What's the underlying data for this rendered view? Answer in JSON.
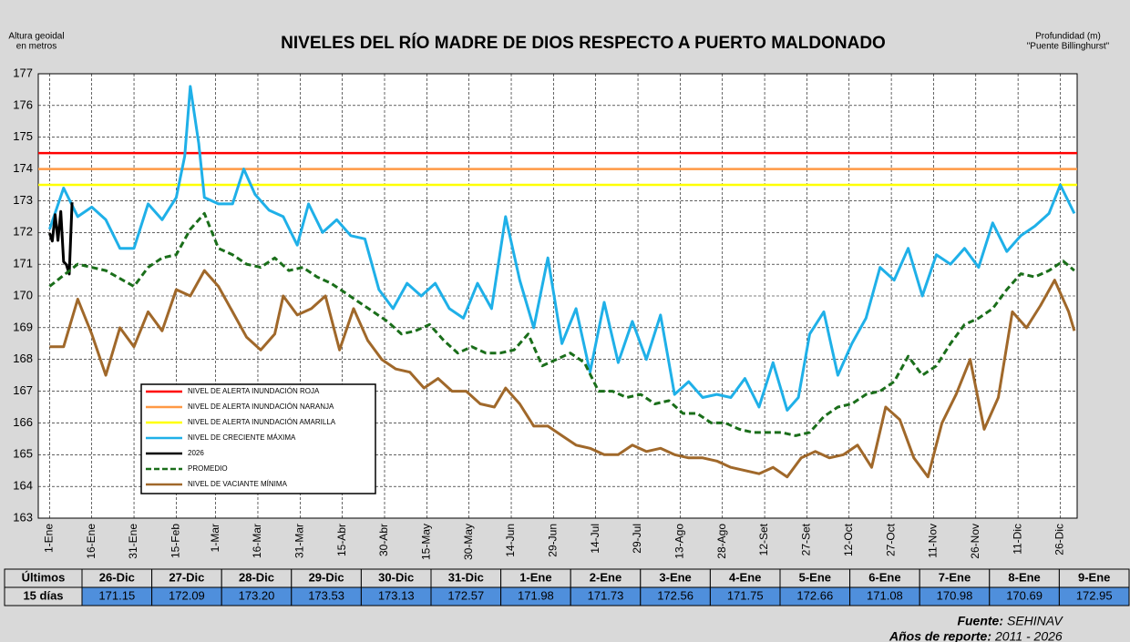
{
  "chart_data": {
    "type": "line",
    "title": "NIVELES DEL RÍO MADRE DE DIOS RESPECTO A PUERTO MALDONADO",
    "y_label": [
      "Altura geoidal",
      "en metros"
    ],
    "y2_label": [
      "Profundidad (m)",
      "\"Puente Billinghurst\""
    ],
    "xlim": [
      -4,
      365
    ],
    "ylim": [
      163,
      177
    ],
    "yticks": [
      163,
      164,
      165,
      166,
      167,
      168,
      169,
      170,
      171,
      172,
      173,
      174,
      175,
      176,
      177
    ],
    "xticks": [
      {
        "value": 0,
        "label": "1-Ene"
      },
      {
        "value": 15,
        "label": "16-Ene"
      },
      {
        "value": 30,
        "label": "31-Ene"
      },
      {
        "value": 45,
        "label": "15-Feb"
      },
      {
        "value": 59,
        "label": "1-Mar"
      },
      {
        "value": 74,
        "label": "16-Mar"
      },
      {
        "value": 89,
        "label": "31-Mar"
      },
      {
        "value": 104,
        "label": "15-Abr"
      },
      {
        "value": 119,
        "label": "30-Abr"
      },
      {
        "value": 134,
        "label": "15-May"
      },
      {
        "value": 149,
        "label": "30-May"
      },
      {
        "value": 164,
        "label": "14-Jun"
      },
      {
        "value": 179,
        "label": "29-Jun"
      },
      {
        "value": 194,
        "label": "14-Jul"
      },
      {
        "value": 209,
        "label": "29-Jul"
      },
      {
        "value": 224,
        "label": "13-Ago"
      },
      {
        "value": 239,
        "label": "28-Ago"
      },
      {
        "value": 254,
        "label": "12-Set"
      },
      {
        "value": 269,
        "label": "27-Set"
      },
      {
        "value": 284,
        "label": "12-Oct"
      },
      {
        "value": 299,
        "label": "27-Oct"
      },
      {
        "value": 314,
        "label": "11-Nov"
      },
      {
        "value": 329,
        "label": "26-Nov"
      },
      {
        "value": 344,
        "label": "11-Dic"
      },
      {
        "value": 359,
        "label": "26-Dic"
      }
    ],
    "grid": true,
    "thresholds": [
      {
        "name": "NIVEL DE ALERTA INUNDACIÓN ROJA",
        "color": "#ff0000",
        "value": 174.5
      },
      {
        "name": "NIVEL DE ALERTA INUNDACIÓN NARANJA",
        "color": "#ff9944",
        "value": 174
      },
      {
        "name": "NIVEL DE ALERTA INUNDACIÓN AMARILLA",
        "color": "#ffff00",
        "value": 173.5
      }
    ],
    "series": [
      {
        "name": "NIVEL DE CRECIENTE MÁXIMA",
        "color": "#1fb0e8",
        "dash": false,
        "x": [
          0,
          5,
          10,
          15,
          20,
          25,
          30,
          35,
          40,
          45,
          48,
          50,
          53,
          55,
          60,
          65,
          69,
          73,
          78,
          83,
          88,
          92,
          97,
          102,
          107,
          112,
          117,
          122,
          127,
          132,
          137,
          142,
          147,
          152,
          157,
          162,
          167,
          172,
          177,
          182,
          187,
          192,
          197,
          202,
          207,
          212,
          217,
          222,
          227,
          232,
          237,
          242,
          247,
          252,
          257,
          262,
          266,
          270,
          275,
          280,
          285,
          290,
          295,
          300,
          305,
          310,
          315,
          320,
          325,
          330,
          335,
          340,
          345,
          350,
          355,
          359,
          364
        ],
        "values": [
          172.1,
          173.4,
          172.5,
          172.8,
          172.4,
          171.5,
          171.5,
          172.9,
          172.4,
          173.1,
          174.4,
          176.6,
          174.8,
          173.1,
          172.9,
          172.9,
          174.0,
          173.2,
          172.7,
          172.5,
          171.6,
          172.9,
          172.0,
          172.4,
          171.9,
          171.8,
          170.2,
          169.6,
          170.4,
          170.0,
          170.4,
          169.6,
          169.3,
          170.4,
          169.6,
          172.5,
          170.5,
          169.0,
          171.2,
          168.5,
          169.6,
          167.6,
          169.8,
          167.9,
          169.2,
          168.0,
          169.4,
          166.9,
          167.3,
          166.8,
          166.9,
          166.8,
          167.4,
          166.5,
          167.9,
          166.4,
          166.8,
          168.8,
          169.5,
          167.5,
          168.5,
          169.3,
          170.9,
          170.5,
          171.5,
          170.0,
          171.3,
          171.0,
          171.5,
          170.9,
          172.3,
          171.4,
          171.9,
          172.2,
          172.6,
          173.5,
          172.6
        ]
      },
      {
        "name": "2026",
        "color": "#000000",
        "dash": false,
        "x": [
          0,
          1,
          2,
          3,
          4,
          5,
          6,
          7,
          8
        ],
        "values": [
          171.98,
          171.73,
          172.56,
          171.75,
          172.66,
          171.08,
          170.98,
          170.69,
          172.95
        ]
      },
      {
        "name": "PROMEDIO",
        "color": "#1a6e1a",
        "dash": true,
        "x": [
          0,
          10,
          20,
          30,
          35,
          40,
          45,
          50,
          55,
          60,
          65,
          70,
          75,
          80,
          85,
          90,
          95,
          100,
          110,
          120,
          125,
          130,
          135,
          140,
          145,
          150,
          155,
          160,
          165,
          170,
          175,
          180,
          185,
          190,
          195,
          200,
          205,
          210,
          215,
          220,
          225,
          230,
          235,
          240,
          245,
          250,
          255,
          260,
          265,
          270,
          275,
          280,
          285,
          290,
          295,
          300,
          305,
          310,
          315,
          320,
          325,
          330,
          335,
          340,
          345,
          350,
          355,
          360,
          364
        ],
        "values": [
          170.3,
          171.0,
          170.8,
          170.3,
          170.9,
          171.2,
          171.3,
          172.1,
          172.6,
          171.5,
          171.3,
          171.0,
          170.9,
          171.2,
          170.8,
          170.9,
          170.6,
          170.4,
          169.8,
          169.2,
          168.8,
          168.9,
          169.1,
          168.6,
          168.2,
          168.4,
          168.2,
          168.2,
          168.3,
          168.8,
          167.8,
          168.0,
          168.2,
          167.9,
          167.0,
          167.0,
          166.8,
          166.9,
          166.6,
          166.7,
          166.3,
          166.3,
          166.0,
          166.0,
          165.8,
          165.7,
          165.7,
          165.7,
          165.6,
          165.7,
          166.2,
          166.5,
          166.6,
          166.9,
          167.0,
          167.3,
          168.1,
          167.5,
          167.8,
          168.5,
          169.1,
          169.3,
          169.6,
          170.2,
          170.7,
          170.6,
          170.8,
          171.1,
          170.8
        ]
      },
      {
        "name": "NIVEL DE VACIANTE MÍNIMA",
        "color": "#a0682a",
        "dash": false,
        "x": [
          0,
          5,
          10,
          15,
          20,
          25,
          30,
          35,
          40,
          45,
          50,
          55,
          60,
          65,
          70,
          75,
          80,
          83,
          88,
          93,
          98,
          103,
          108,
          113,
          118,
          123,
          128,
          133,
          138,
          143,
          148,
          153,
          158,
          162,
          167,
          172,
          177,
          182,
          187,
          192,
          197,
          202,
          207,
          212,
          217,
          222,
          227,
          232,
          237,
          242,
          247,
          252,
          257,
          262,
          267,
          272,
          277,
          282,
          287,
          292,
          297,
          302,
          307,
          312,
          317,
          322,
          327,
          332,
          337,
          342,
          347,
          352,
          357,
          362,
          364
        ],
        "values": [
          168.4,
          168.4,
          169.9,
          168.8,
          167.5,
          169.0,
          168.4,
          169.5,
          168.9,
          170.2,
          170.0,
          170.8,
          170.3,
          169.5,
          168.7,
          168.3,
          168.8,
          170.0,
          169.4,
          169.6,
          170.0,
          168.3,
          169.6,
          168.6,
          168.0,
          167.7,
          167.6,
          167.1,
          167.4,
          167.0,
          167.0,
          166.6,
          166.5,
          167.1,
          166.6,
          165.9,
          165.9,
          165.6,
          165.3,
          165.2,
          165.0,
          165.0,
          165.3,
          165.1,
          165.2,
          165.0,
          164.9,
          164.9,
          164.8,
          164.6,
          164.5,
          164.4,
          164.6,
          164.3,
          164.9,
          165.1,
          164.9,
          165.0,
          165.3,
          164.6,
          166.5,
          166.1,
          164.9,
          164.3,
          166.0,
          166.9,
          168.0,
          165.8,
          166.8,
          169.5,
          169.0,
          169.7,
          170.5,
          169.5,
          168.9
        ]
      }
    ]
  },
  "table": {
    "header": [
      "Últimos",
      "26-Dic",
      "27-Dic",
      "28-Dic",
      "29-Dic",
      "30-Dic",
      "31-Dic",
      "1-Ene",
      "2-Ene",
      "3-Ene",
      "4-Ene",
      "5-Ene",
      "6-Ene",
      "7-Ene",
      "8-Ene",
      "9-Ene"
    ],
    "row": [
      "15 días",
      "171.15",
      "172.09",
      "173.20",
      "173.53",
      "173.13",
      "172.57",
      "171.98",
      "171.73",
      "172.56",
      "171.75",
      "172.66",
      "171.08",
      "170.98",
      "170.69",
      "172.95"
    ]
  },
  "footer": {
    "source_label": "Fuente:",
    "source": "SEHINAV",
    "years_label": "Años de reporte:",
    "years": "2011 - 2026"
  }
}
